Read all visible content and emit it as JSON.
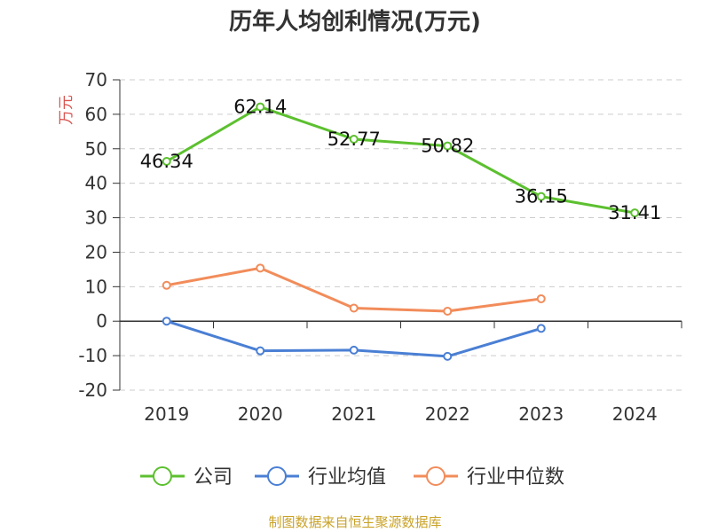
{
  "chart_data": {
    "type": "line",
    "title": "历年人均创利情况(万元)",
    "ylabel": "万元",
    "xlabel": "",
    "categories": [
      "2019",
      "2020",
      "2021",
      "2022",
      "2023",
      "2024"
    ],
    "ylim": [
      -20,
      70
    ],
    "yticks": [
      70,
      60,
      50,
      40,
      30,
      20,
      10,
      0,
      -10,
      -20
    ],
    "grid": true,
    "legend_position": "bottom",
    "series": [
      {
        "name": "公司",
        "color": "#5cc02f",
        "values": [
          46.34,
          62.14,
          52.77,
          50.82,
          36.15,
          31.41
        ],
        "labels": [
          "46.34",
          "62.14",
          "52.77",
          "50.82",
          "36.15",
          "31.41"
        ]
      },
      {
        "name": "行业均值",
        "color": "#4a7fd4",
        "values": [
          0,
          -8.6,
          -8.4,
          -10.2,
          -2.1,
          null
        ]
      },
      {
        "name": "行业中位数",
        "color": "#f28c5a",
        "values": [
          10.4,
          15.4,
          3.8,
          2.9,
          6.5,
          null
        ]
      }
    ]
  },
  "footer": {
    "source": "制图数据来自恒生聚源数据库"
  }
}
